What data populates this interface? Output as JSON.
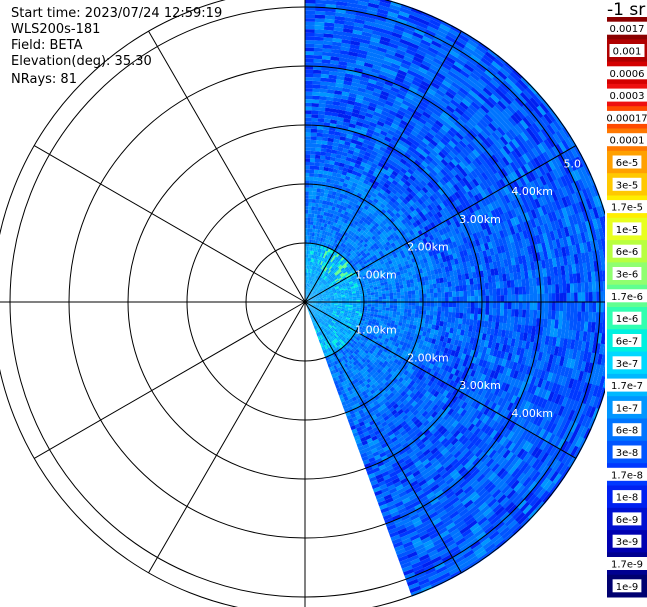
{
  "info": {
    "start_time": "Start time: 2023/07/24 12:59:19",
    "instrument": "WLS200s-181",
    "field": "Field: BETA",
    "elevation": "Elevation(deg): 35.30",
    "nrays": "NRays: 81"
  },
  "colorbar": {
    "unit_title": "-1 sr",
    "labels": [
      "0.0017",
      "0.001",
      "0.0006",
      "0.0003",
      "0.00017",
      "0.0001",
      "6e-5",
      "3e-5",
      "1.7e-5",
      "1e-5",
      "6e-6",
      "3e-6",
      "1.7e-6",
      "1e-6",
      "6e-7",
      "3e-7",
      "1.7e-7",
      "1e-7",
      "6e-8",
      "3e-8",
      "1.7e-8",
      "1e-8",
      "6e-9",
      "3e-9",
      "1.7e-9",
      "1e-9"
    ],
    "colors": [
      "#8b0000",
      "#b00000",
      "#d40000",
      "#ee1010",
      "#ff4a00",
      "#ff7800",
      "#ffa000",
      "#ffc800",
      "#ffee00",
      "#e8ff20",
      "#b8ff40",
      "#90ff70",
      "#60ff90",
      "#30ffb0",
      "#00f0e0",
      "#00d8ff",
      "#00b8ff",
      "#0096ff",
      "#0074ff",
      "#0055ff",
      "#0038ff",
      "#0020f0",
      "#0010d0",
      "#0000b0",
      "#000090",
      "#000070"
    ]
  },
  "chart_data": {
    "type": "heatmap",
    "projection": "polar PPI",
    "range_rings_km": [
      1,
      2,
      3,
      4,
      5
    ],
    "outer_range_km": 5.3,
    "spoke_angles_deg": [
      0,
      30,
      60,
      90,
      120,
      150,
      180,
      210,
      240,
      270,
      300,
      330
    ],
    "ring_labels_upper": [
      "1.00km",
      "2.00km",
      "3.00km",
      "4.00km",
      "5.0"
    ],
    "ring_labels_lower": [
      "1.00km",
      "2.00km",
      "3.00km",
      "4.00km"
    ],
    "sector_azimuth_deg": [
      0,
      160
    ],
    "sector_dominant_values": [
      "1e-8",
      "3e-8",
      "6e-8"
    ],
    "near_range_values": [
      "1e-7",
      "1e-6"
    ]
  }
}
